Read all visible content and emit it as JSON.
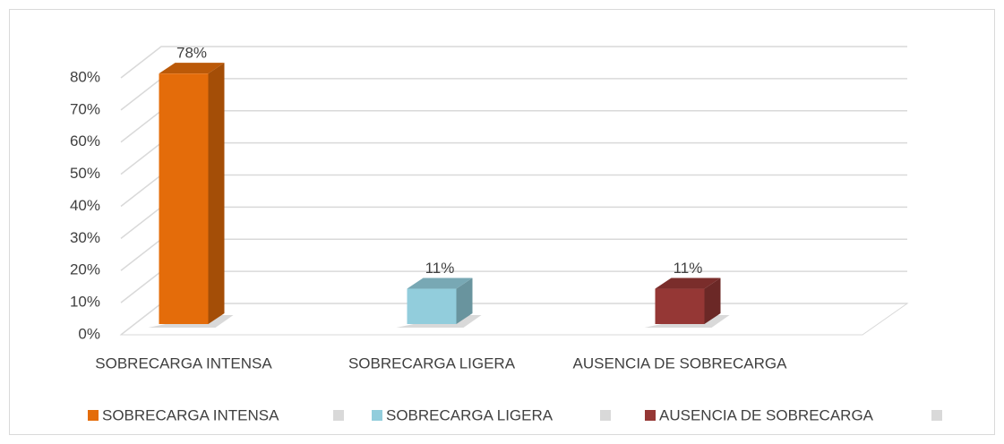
{
  "chart_data": {
    "type": "bar3d",
    "categories": [
      "SOBRECARGA INTENSA",
      "SOBRECARGA LIGERA",
      "AUSENCIA DE SOBRECARGA"
    ],
    "values": [
      78,
      11,
      11
    ],
    "value_labels": [
      "78%",
      "11%",
      "11%"
    ],
    "colors": [
      "#E46C0A",
      "#92CDDC",
      "#953735"
    ],
    "ylim": [
      0,
      80
    ],
    "yticks": [
      {
        "value": 0,
        "label": "0%"
      },
      {
        "value": 10,
        "label": "10%"
      },
      {
        "value": 20,
        "label": "20%"
      },
      {
        "value": 30,
        "label": "30%"
      },
      {
        "value": 40,
        "label": "40%"
      },
      {
        "value": 50,
        "label": "50%"
      },
      {
        "value": 60,
        "label": "60%"
      },
      {
        "value": 70,
        "label": "70%"
      },
      {
        "value": 80,
        "label": "80%"
      }
    ],
    "grid": true,
    "legend": "bottom"
  }
}
